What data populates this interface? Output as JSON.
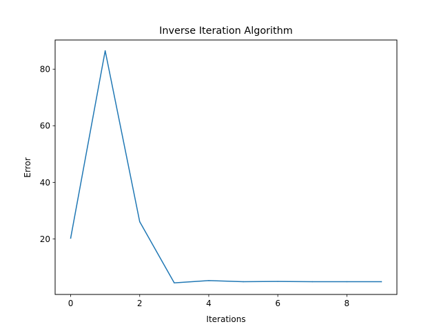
{
  "chart_data": {
    "type": "line",
    "title": "Inverse Iteration Algorithm",
    "xlabel": "Iterations",
    "ylabel": "Error",
    "xlim": [
      -0.45,
      9.45
    ],
    "ylim": [
      0.4,
      90.3
    ],
    "x_ticks": [
      0,
      2,
      4,
      6,
      8
    ],
    "x_tick_labels": [
      "0",
      "2",
      "4",
      "6",
      "8"
    ],
    "y_ticks": [
      20,
      40,
      60,
      80
    ],
    "y_tick_labels": [
      "20",
      "40",
      "60",
      "80"
    ],
    "grid": false,
    "legend": "none",
    "series": [
      {
        "color": "#1f77b4",
        "x": [
          0,
          1,
          2,
          3,
          4,
          5,
          6,
          7,
          8,
          9
        ],
        "y": [
          20.3,
          86.5,
          26.1,
          4.5,
          5.3,
          4.9,
          5.0,
          4.9,
          4.9,
          4.9
        ]
      }
    ]
  }
}
